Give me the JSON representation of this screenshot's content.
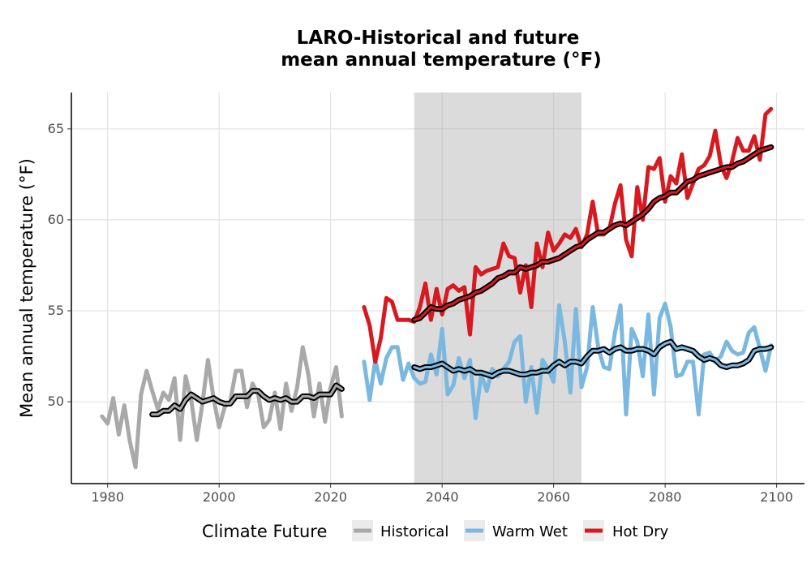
{
  "chart_data": {
    "type": "line",
    "title_line1": "LARO-Historical and future",
    "title_line2": "mean annual temperature (°F)",
    "xlabel": "",
    "ylabel": "Mean annual temperature (°F)",
    "xlim": [
      1973.5,
      2105
    ],
    "ylim": [
      45.5,
      67.0
    ],
    "x_ticks": [
      1980,
      2000,
      2020,
      2040,
      2060,
      2080,
      2100
    ],
    "y_ticks": [
      50,
      55,
      60,
      65
    ],
    "grid": true,
    "reference_period": [
      2035,
      2065
    ],
    "legend": {
      "title": "Climate Future",
      "position": "bottom"
    },
    "series": [
      {
        "name": "Historical",
        "color": "#a9a9a9",
        "x": [
          1979,
          1980,
          1981,
          1982,
          1983,
          1984,
          1985,
          1986,
          1987,
          1988,
          1989,
          1990,
          1991,
          1992,
          1993,
          1994,
          1995,
          1996,
          1997,
          1998,
          1999,
          2000,
          2001,
          2002,
          2003,
          2004,
          2005,
          2006,
          2007,
          2008,
          2009,
          2010,
          2011,
          2012,
          2013,
          2014,
          2015,
          2016,
          2017,
          2018,
          2019,
          2020,
          2021,
          2022
        ],
        "values": [
          49.2,
          48.8,
          50.2,
          48.2,
          49.8,
          47.8,
          46.4,
          50.4,
          51.7,
          50.6,
          49.6,
          50.5,
          50.1,
          51.3,
          47.9,
          51.4,
          50.1,
          47.9,
          49.9,
          52.3,
          50.2,
          48.6,
          49.7,
          50.0,
          51.7,
          51.7,
          49.7,
          51.0,
          50.4,
          48.6,
          49.0,
          50.5,
          48.5,
          51.0,
          49.5,
          50.8,
          53.0,
          51.5,
          49.2,
          51.0,
          48.9,
          50.8,
          51.9,
          49.2
        ]
      },
      {
        "name": "Historical 10-yr mean",
        "color": "#000000",
        "x": [
          1988,
          1989,
          1990,
          1991,
          1992,
          1993,
          1994,
          1995,
          1996,
          1997,
          1998,
          1999,
          2000,
          2001,
          2002,
          2003,
          2004,
          2005,
          2006,
          2007,
          2008,
          2009,
          2010,
          2011,
          2012,
          2013,
          2014,
          2015,
          2016,
          2017,
          2018,
          2019,
          2020,
          2021,
          2022
        ],
        "values": [
          49.3,
          49.3,
          49.5,
          49.5,
          49.8,
          49.6,
          50.1,
          50.4,
          50.2,
          50.0,
          50.1,
          50.2,
          50.0,
          49.9,
          49.9,
          50.3,
          50.3,
          50.3,
          50.6,
          50.6,
          50.3,
          50.1,
          50.2,
          50.1,
          50.2,
          50.0,
          50.0,
          50.3,
          50.3,
          50.2,
          50.4,
          50.4,
          50.4,
          50.9,
          50.7
        ]
      },
      {
        "name": "Warm Wet",
        "color": "#7bb8e0",
        "x": [
          2026,
          2027,
          2028,
          2029,
          2030,
          2031,
          2032,
          2033,
          2034,
          2035,
          2036,
          2037,
          2038,
          2039,
          2040,
          2041,
          2042,
          2043,
          2044,
          2045,
          2046,
          2047,
          2048,
          2049,
          2050,
          2051,
          2052,
          2053,
          2054,
          2055,
          2056,
          2057,
          2058,
          2059,
          2060,
          2061,
          2062,
          2063,
          2064,
          2065,
          2066,
          2067,
          2068,
          2069,
          2070,
          2071,
          2072,
          2073,
          2074,
          2075,
          2076,
          2077,
          2078,
          2079,
          2080,
          2081,
          2082,
          2083,
          2084,
          2085,
          2086,
          2087,
          2088,
          2089,
          2090,
          2091,
          2092,
          2093,
          2094,
          2095,
          2096,
          2097,
          2098,
          2099
        ],
        "values": [
          52.2,
          50.1,
          52.3,
          51.0,
          52.4,
          53.0,
          53.0,
          51.2,
          52.1,
          51.3,
          51.0,
          51.1,
          52.6,
          51.5,
          54.0,
          50.4,
          50.9,
          52.4,
          51.3,
          52.3,
          49.1,
          51.5,
          50.6,
          51.8,
          51.4,
          51.8,
          52.2,
          53.3,
          53.6,
          50.0,
          51.9,
          49.4,
          52.3,
          51.8,
          51.1,
          55.3,
          53.3,
          50.5,
          55.1,
          50.8,
          51.9,
          55.2,
          53.0,
          51.9,
          51.8,
          53.8,
          55.3,
          49.3,
          54.0,
          53.3,
          51.4,
          54.8,
          50.4,
          54.6,
          55.4,
          54.1,
          51.4,
          51.5,
          52.2,
          52.2,
          49.3,
          52.6,
          52.7,
          52.2,
          52.5,
          53.3,
          52.8,
          52.6,
          52.7,
          53.8,
          54.1,
          52.9,
          51.7,
          53.1
        ]
      },
      {
        "name": "Warm Wet 10-yr mean",
        "color": "#000000",
        "x": [
          2035,
          2036,
          2037,
          2038,
          2039,
          2040,
          2041,
          2042,
          2043,
          2044,
          2045,
          2046,
          2047,
          2048,
          2049,
          2050,
          2051,
          2052,
          2053,
          2054,
          2055,
          2056,
          2057,
          2058,
          2059,
          2060,
          2061,
          2062,
          2063,
          2064,
          2065,
          2066,
          2067,
          2068,
          2069,
          2070,
          2071,
          2072,
          2073,
          2074,
          2075,
          2076,
          2077,
          2078,
          2079,
          2080,
          2081,
          2082,
          2083,
          2084,
          2085,
          2086,
          2087,
          2088,
          2089,
          2090,
          2091,
          2092,
          2093,
          2094,
          2095,
          2096,
          2097,
          2098,
          2099
        ],
        "values": [
          51.9,
          51.8,
          51.9,
          51.9,
          52.0,
          52.1,
          51.9,
          51.7,
          51.8,
          51.7,
          51.8,
          51.6,
          51.6,
          51.5,
          51.4,
          51.6,
          51.7,
          51.7,
          51.6,
          51.5,
          51.5,
          51.6,
          51.6,
          51.7,
          51.7,
          52.0,
          52.2,
          52.0,
          52.2,
          52.2,
          52.1,
          52.5,
          52.8,
          52.8,
          52.9,
          52.7,
          52.9,
          53.0,
          52.8,
          52.8,
          52.9,
          52.9,
          52.8,
          52.6,
          53.0,
          53.2,
          53.3,
          52.9,
          53.0,
          52.9,
          52.8,
          52.5,
          52.3,
          52.4,
          52.3,
          52.0,
          51.9,
          52.0,
          52.0,
          52.1,
          52.3,
          52.8,
          52.9,
          52.9,
          53.0
        ]
      },
      {
        "name": "Hot Dry",
        "color": "#d71920",
        "x": [
          2026,
          2027,
          2028,
          2029,
          2030,
          2031,
          2032,
          2033,
          2034,
          2035,
          2036,
          2037,
          2038,
          2039,
          2040,
          2041,
          2042,
          2043,
          2044,
          2045,
          2046,
          2047,
          2048,
          2049,
          2050,
          2051,
          2052,
          2053,
          2054,
          2055,
          2056,
          2057,
          2058,
          2059,
          2060,
          2061,
          2062,
          2063,
          2064,
          2065,
          2066,
          2067,
          2068,
          2069,
          2070,
          2071,
          2072,
          2073,
          2074,
          2075,
          2076,
          2077,
          2078,
          2079,
          2080,
          2081,
          2082,
          2083,
          2084,
          2085,
          2086,
          2087,
          2088,
          2089,
          2090,
          2091,
          2092,
          2093,
          2094,
          2095,
          2096,
          2097,
          2098,
          2099
        ],
        "values": [
          55.2,
          54.2,
          52.2,
          53.5,
          55.7,
          55.5,
          54.5,
          54.5,
          54.5,
          54.4,
          55.2,
          56.5,
          54.5,
          56.2,
          54.8,
          56.2,
          56.4,
          56.1,
          56.3,
          53.7,
          57.4,
          57.0,
          57.2,
          57.3,
          57.4,
          58.7,
          58.0,
          57.9,
          56.0,
          57.5,
          55.2,
          58.7,
          57.4,
          59.3,
          58.3,
          58.7,
          59.2,
          59.0,
          59.5,
          58.5,
          59.2,
          61.0,
          59.2,
          59.2,
          59.5,
          60.9,
          61.9,
          58.9,
          58.0,
          61.8,
          60.0,
          62.9,
          62.8,
          63.4,
          61.0,
          62.4,
          62.0,
          63.6,
          61.2,
          62.0,
          62.8,
          63.0,
          63.5,
          64.9,
          63.0,
          62.3,
          63.2,
          64.5,
          63.8,
          63.8,
          64.6,
          63.3,
          65.8,
          66.1
        ]
      },
      {
        "name": "Hot Dry 10-yr mean",
        "color": "#000000",
        "x": [
          2035,
          2036,
          2037,
          2038,
          2039,
          2040,
          2041,
          2042,
          2043,
          2044,
          2045,
          2046,
          2047,
          2048,
          2049,
          2050,
          2051,
          2052,
          2053,
          2054,
          2055,
          2056,
          2057,
          2058,
          2059,
          2060,
          2061,
          2062,
          2063,
          2064,
          2065,
          2066,
          2067,
          2068,
          2069,
          2070,
          2071,
          2072,
          2073,
          2074,
          2075,
          2076,
          2077,
          2078,
          2079,
          2080,
          2081,
          2082,
          2083,
          2084,
          2085,
          2086,
          2087,
          2088,
          2089,
          2090,
          2091,
          2092,
          2093,
          2094,
          2095,
          2096,
          2097,
          2098,
          2099
        ],
        "values": [
          54.5,
          54.6,
          54.9,
          55.2,
          55.1,
          55.1,
          55.3,
          55.4,
          55.6,
          55.7,
          55.8,
          56.0,
          56.1,
          56.3,
          56.5,
          56.8,
          56.9,
          57.1,
          57.1,
          57.4,
          57.3,
          57.4,
          57.5,
          57.7,
          57.7,
          57.8,
          57.9,
          58.1,
          58.3,
          58.5,
          58.6,
          58.9,
          59.1,
          59.3,
          59.3,
          59.5,
          59.7,
          59.8,
          59.7,
          59.9,
          60.1,
          60.3,
          60.6,
          61.0,
          61.2,
          61.3,
          61.5,
          61.5,
          61.8,
          62.1,
          62.2,
          62.4,
          62.5,
          62.6,
          62.7,
          62.8,
          62.9,
          62.9,
          63.1,
          63.2,
          63.4,
          63.6,
          63.8,
          63.9,
          64.0
        ]
      }
    ]
  }
}
